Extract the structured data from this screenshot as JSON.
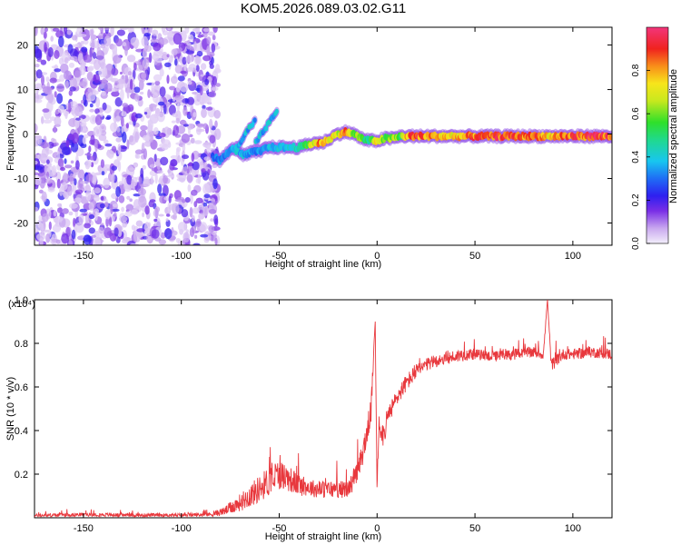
{
  "title": "KOM5.2026.089.03.02.G11",
  "chart_data": [
    {
      "type": "heatmap",
      "name": "spectrogram",
      "xlabel": "Height of straight line (km)",
      "ylabel": "Frequency (Hz)",
      "xlim": [
        -175,
        120
      ],
      "ylim": [
        -25,
        24
      ],
      "xticks": [
        -150,
        -100,
        -50,
        0,
        50,
        100
      ],
      "yticks": [
        -20,
        -10,
        0,
        10,
        20
      ],
      "noise_region_x": [
        -175,
        -84
      ],
      "signal_start_x": -84,
      "signal_trace": {
        "x": [
          -84,
          -80,
          -76,
          -72,
          -68,
          -64,
          -60,
          -56,
          -52,
          -48,
          -44,
          -40,
          -36,
          -32,
          -28,
          -24,
          -20,
          -16,
          -12,
          -8,
          -4,
          0,
          4,
          8,
          12,
          16,
          20,
          30,
          40,
          50,
          60,
          70,
          80,
          90,
          100,
          110,
          120
        ],
        "y": [
          -5,
          -6,
          -4,
          -3,
          -5,
          -4,
          -4,
          -3,
          -3,
          -3,
          -3,
          -3,
          -2.5,
          -2,
          -2,
          -1,
          0,
          0.5,
          0,
          -1,
          -1.5,
          -1.5,
          -1,
          -1,
          -0.5,
          -0.5,
          -0.5,
          -0.5,
          -0.5,
          -0.5,
          -0.5,
          -0.5,
          -0.5,
          -0.5,
          -0.5,
          -0.5,
          -0.5
        ],
        "amplitude": [
          0.3,
          0.35,
          0.35,
          0.4,
          0.4,
          0.35,
          0.35,
          0.4,
          0.4,
          0.4,
          0.45,
          0.5,
          0.6,
          0.8,
          0.9,
          0.8,
          0.7,
          0.9,
          0.7,
          0.6,
          0.5,
          0.8,
          0.6,
          0.7,
          0.6,
          0.9,
          0.95,
          0.85,
          0.8,
          0.9,
          0.95,
          0.95,
          0.9,
          0.8,
          0.95,
          0.95,
          0.95
        ]
      },
      "branches": [
        {
          "x": [
            -72,
            -66,
            -62
          ],
          "y": [
            -4,
            1,
            3
          ]
        },
        {
          "x": [
            -62,
            -56,
            -51
          ],
          "y": [
            -2,
            2,
            5
          ]
        }
      ],
      "colorbar": {
        "label": "Normalized spectral amplitude",
        "range": [
          0,
          1
        ],
        "ticks": [
          "0.0",
          "0.2",
          "0.4",
          "0.6",
          "0.8"
        ]
      }
    },
    {
      "type": "line",
      "name": "snr",
      "xlabel": "Height of straight line (km)",
      "ylabel": "SNR (10 * v/v)",
      "exponent_label": "(x10⁴)",
      "xlim": [
        -175,
        120
      ],
      "ylim": [
        0,
        1.0
      ],
      "xticks": [
        -150,
        -100,
        -50,
        0,
        50,
        100
      ],
      "yticks": [
        "0.2",
        "0.4",
        "0.6",
        "0.8",
        "1.0"
      ],
      "color": "#e8383d",
      "x": [
        -175,
        -150,
        -125,
        -100,
        -85,
        -78,
        -70,
        -62,
        -55,
        -50,
        -45,
        -40,
        -35,
        -30,
        -25,
        -20,
        -15,
        -10,
        -6,
        -3,
        -1,
        0,
        1,
        3,
        6,
        10,
        15,
        20,
        25,
        30,
        35,
        40,
        45,
        50,
        60,
        70,
        80,
        85,
        87,
        89,
        95,
        100,
        110,
        120
      ],
      "y": [
        0.01,
        0.015,
        0.012,
        0.012,
        0.015,
        0.03,
        0.07,
        0.12,
        0.17,
        0.2,
        0.18,
        0.15,
        0.14,
        0.13,
        0.13,
        0.13,
        0.13,
        0.2,
        0.35,
        0.5,
        0.9,
        0.14,
        0.45,
        0.38,
        0.47,
        0.55,
        0.62,
        0.67,
        0.7,
        0.72,
        0.73,
        0.74,
        0.75,
        0.75,
        0.74,
        0.75,
        0.76,
        0.75,
        1.0,
        0.7,
        0.75,
        0.75,
        0.76,
        0.75
      ],
      "noise": [
        0.008,
        0.008,
        0.008,
        0.008,
        0.01,
        0.02,
        0.04,
        0.06,
        0.07,
        0.07,
        0.06,
        0.05,
        0.04,
        0.04,
        0.04,
        0.04,
        0.04,
        0.05,
        0.06,
        0.06,
        0.0,
        0.0,
        0.06,
        0.06,
        0.05,
        0.04,
        0.04,
        0.035,
        0.03,
        0.03,
        0.03,
        0.03,
        0.03,
        0.025,
        0.025,
        0.025,
        0.025,
        0.025,
        0.0,
        0.03,
        0.025,
        0.025,
        0.025,
        0.025
      ]
    }
  ]
}
